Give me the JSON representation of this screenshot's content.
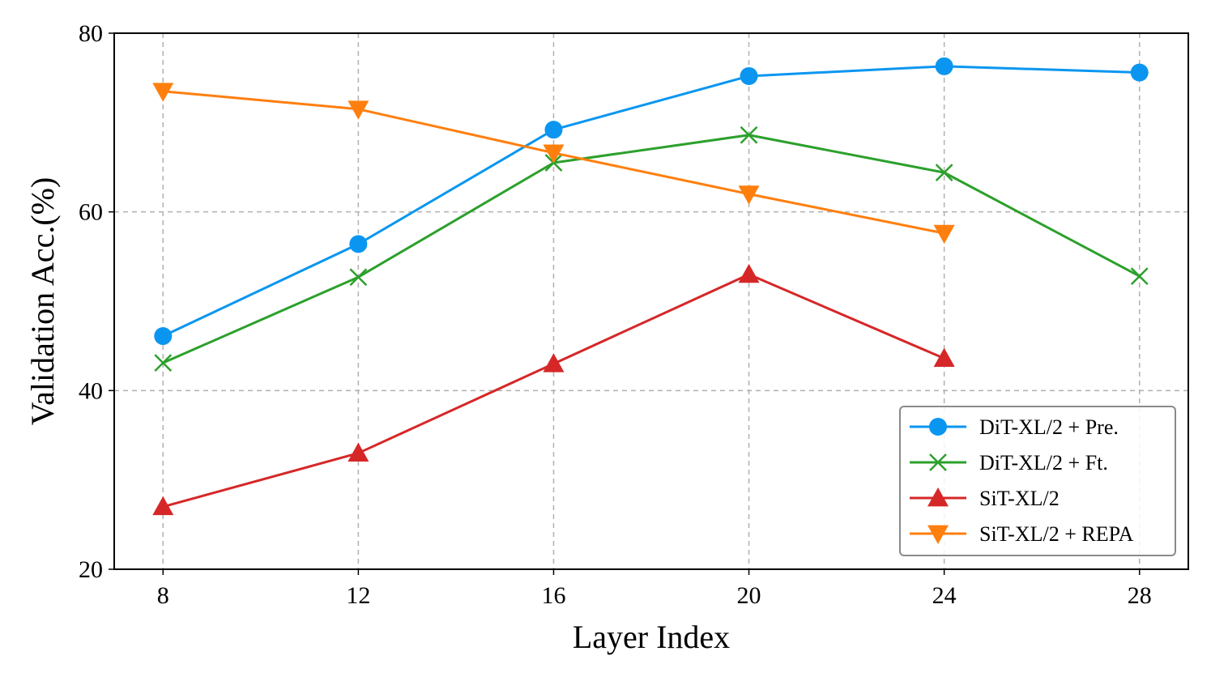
{
  "chart_data": {
    "type": "line",
    "title": "",
    "xlabel": "Layer Index",
    "ylabel": "Validation Acc.(%)",
    "xlim": [
      7,
      29
    ],
    "ylim": [
      20,
      80
    ],
    "xticks": [
      8,
      12,
      16,
      20,
      24,
      28
    ],
    "yticks": [
      20,
      40,
      60,
      80
    ],
    "grid": true,
    "legend_position": "lower-right",
    "series": [
      {
        "name": "DiT-XL/2 + Pre.",
        "color": "#0a96f0",
        "marker": "circle",
        "x": [
          8,
          12,
          16,
          20,
          24,
          28
        ],
        "y": [
          46.1,
          56.4,
          69.2,
          75.2,
          76.3,
          75.6
        ]
      },
      {
        "name": "DiT-XL/2 + Ft.",
        "color": "#2ca02c",
        "marker": "x",
        "x": [
          8,
          12,
          16,
          20,
          24,
          28
        ],
        "y": [
          43.1,
          52.7,
          65.5,
          68.6,
          64.4,
          52.8
        ]
      },
      {
        "name": "SiT-XL/2",
        "color": "#d62728",
        "marker": "triangle-up",
        "x": [
          8,
          12,
          16,
          20,
          24
        ],
        "y": [
          27.0,
          33.0,
          43.0,
          53.0,
          43.6
        ]
      },
      {
        "name": "SiT-XL/2 + REPA",
        "color": "#ff7f0e",
        "marker": "triangle-down",
        "x": [
          8,
          12,
          16,
          20,
          24
        ],
        "y": [
          73.5,
          71.5,
          66.6,
          62.0,
          57.6
        ]
      }
    ]
  }
}
